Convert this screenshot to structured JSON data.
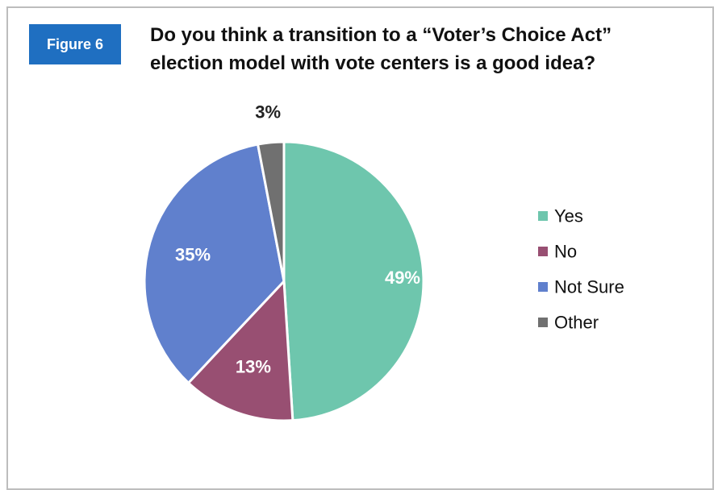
{
  "figure_label": "Figure 6",
  "title_lines": [
    "Do you think a transition to a “Voter’s Choice Act”",
    "election model with vote centers is a good idea?"
  ],
  "chart_data": {
    "type": "pie",
    "title": "Do you think a transition to a “Voter’s Choice Act” election model with vote centers is a good idea?",
    "categories": [
      "Yes",
      "No",
      "Not Sure",
      "Other"
    ],
    "values": [
      49,
      13,
      35,
      3
    ],
    "data_labels": [
      "49%",
      "13%",
      "35%",
      "3%"
    ],
    "colors": [
      "#6ec6ad",
      "#984f72",
      "#6080cd",
      "#707070"
    ],
    "label_colors": [
      "#ffffff",
      "#ffffff",
      "#ffffff",
      "#222222"
    ],
    "legend_position": "right"
  }
}
